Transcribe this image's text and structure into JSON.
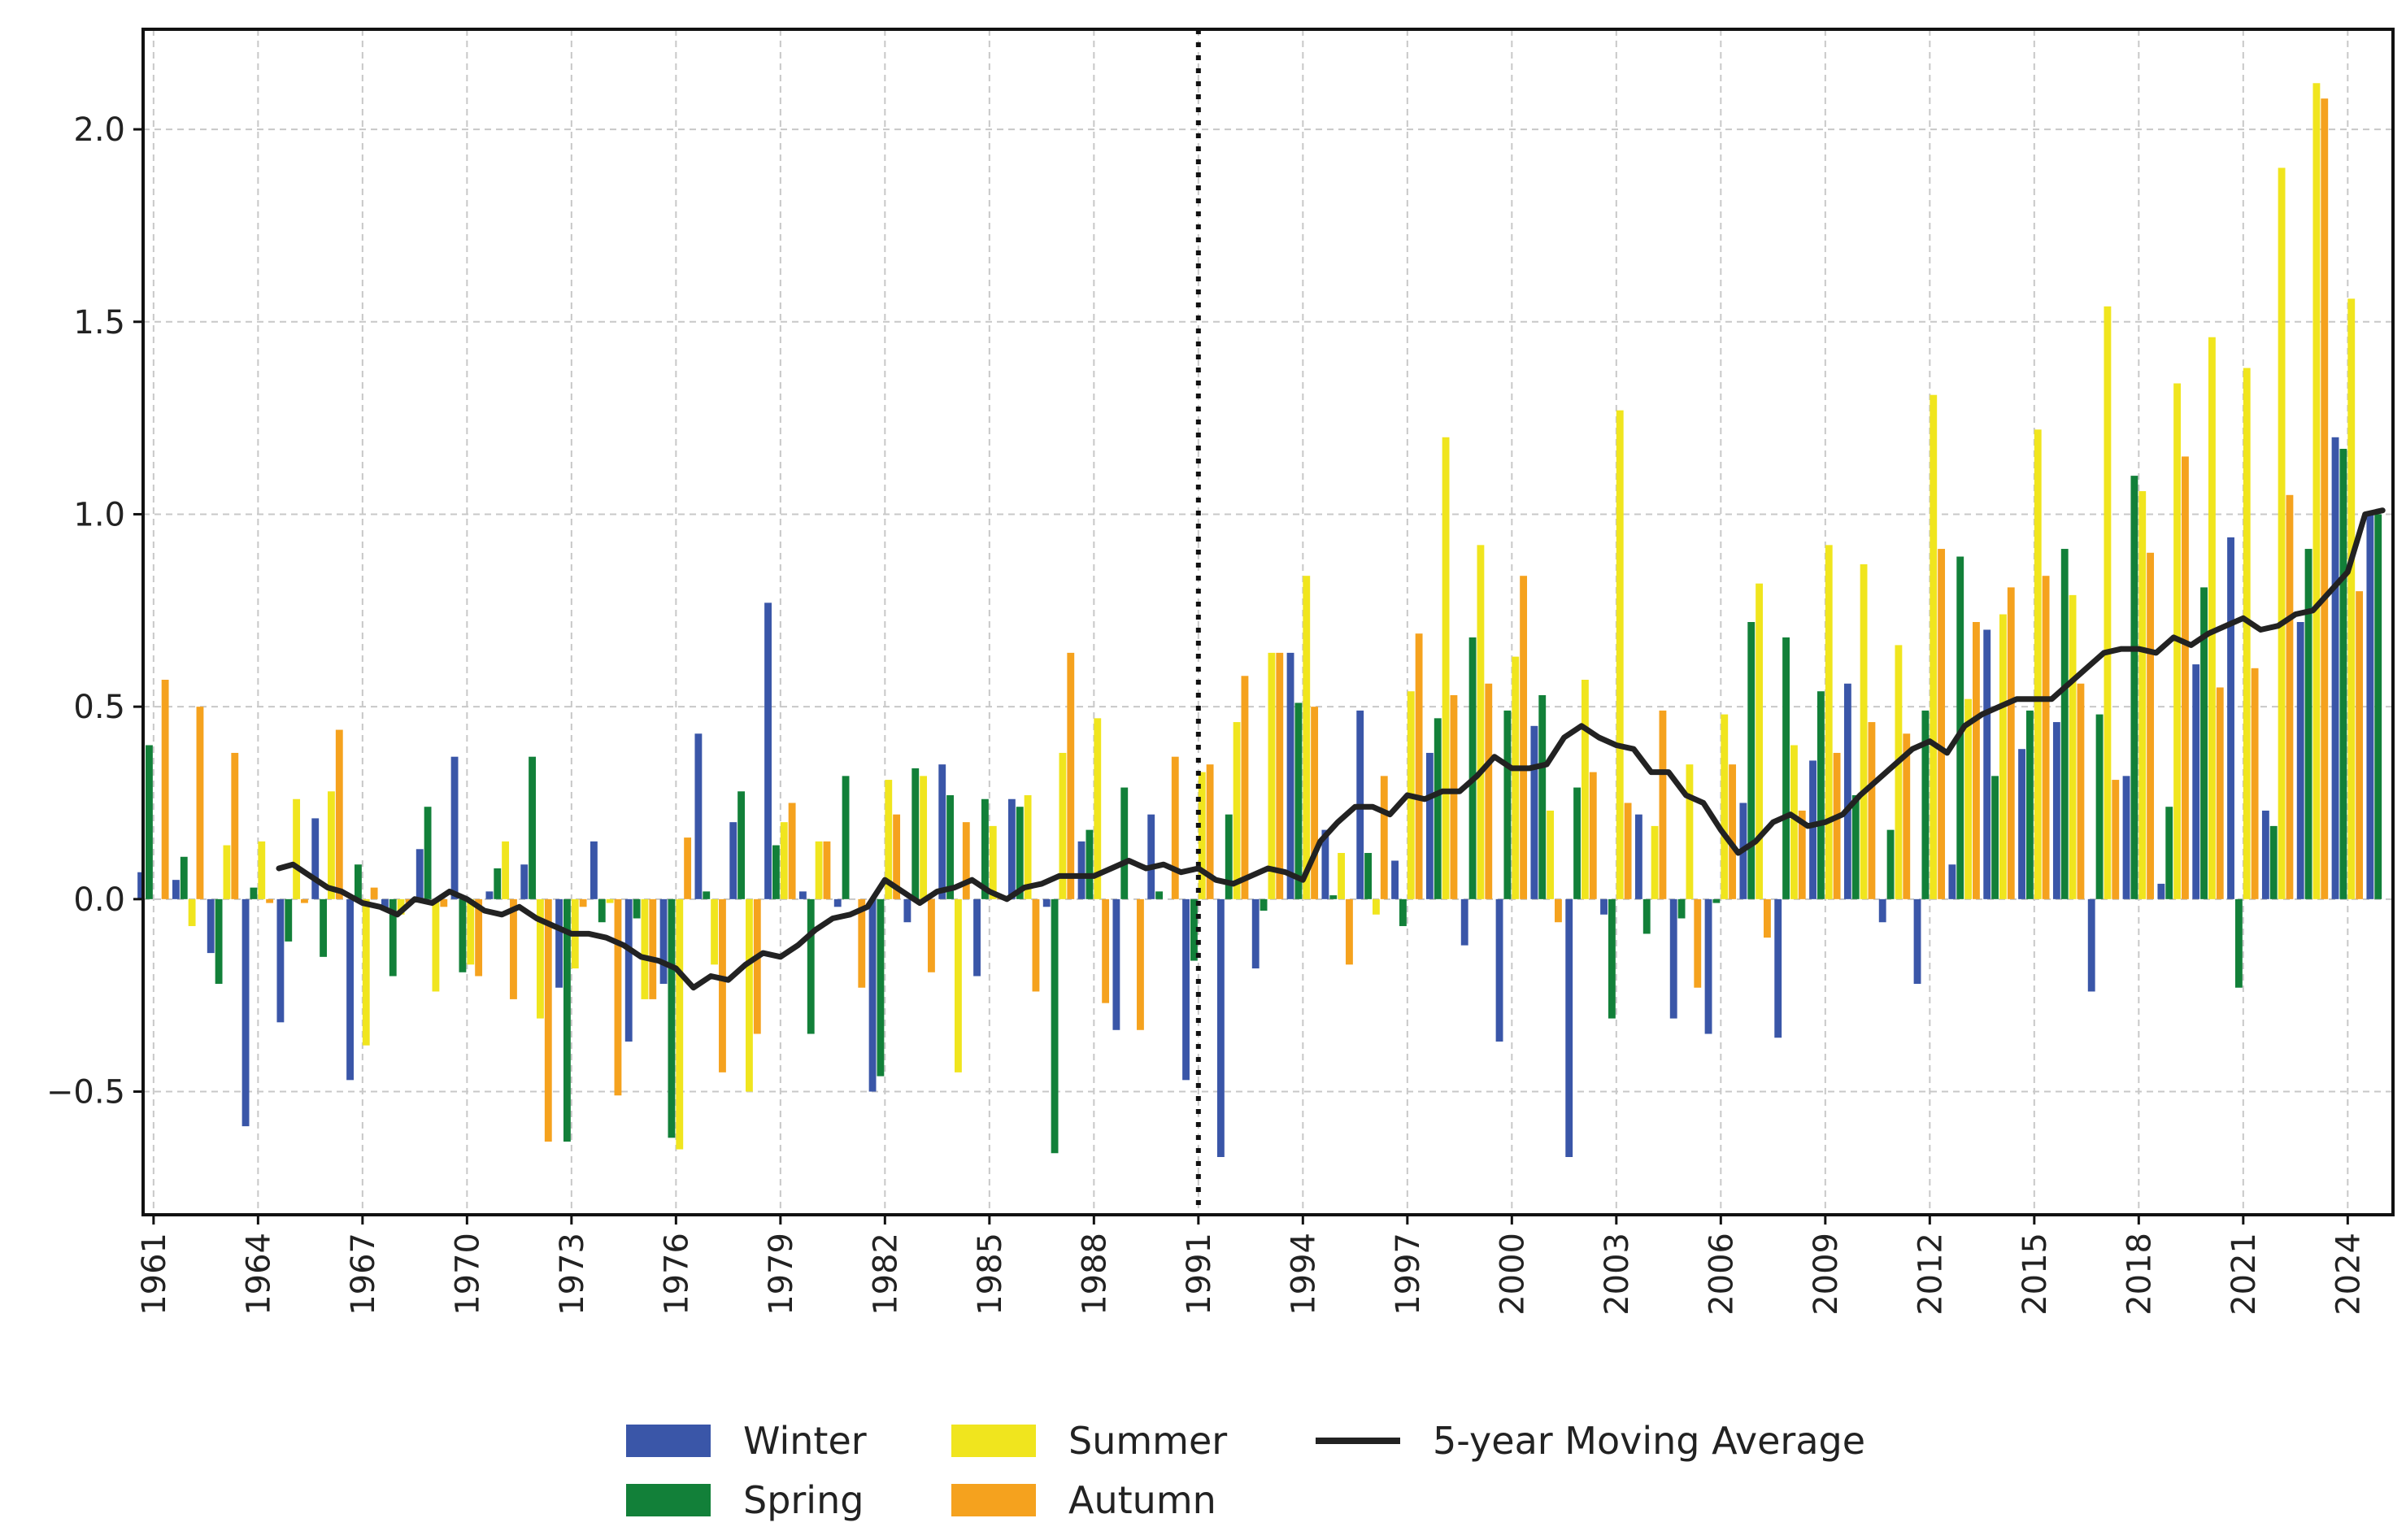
{
  "chart_data": {
    "type": "bar",
    "title": "",
    "xlabel": "",
    "ylabel": "",
    "xlim": [
      1960.7,
      2025.3
    ],
    "ylim": [
      -0.82,
      2.26
    ],
    "x_ticks": [
      1961,
      1964,
      1967,
      1970,
      1973,
      1976,
      1979,
      1982,
      1985,
      1988,
      1991,
      1994,
      1997,
      2000,
      2003,
      2006,
      2009,
      2012,
      2015,
      2018,
      2021,
      2024
    ],
    "y_ticks": [
      -0.5,
      0.0,
      0.5,
      1.0,
      1.5,
      2.0
    ],
    "y_tick_labels": [
      "−0.5",
      "0.0",
      "0.5",
      "1.0",
      "1.5",
      "2.0"
    ],
    "grid": true,
    "legend_position": "bottom-center",
    "reference_line": {
      "x": 1991,
      "style": "dotted"
    },
    "years": [
      1961,
      1962,
      1963,
      1964,
      1965,
      1966,
      1967,
      1968,
      1969,
      1970,
      1971,
      1972,
      1973,
      1974,
      1975,
      1976,
      1977,
      1978,
      1979,
      1980,
      1981,
      1982,
      1983,
      1984,
      1985,
      1986,
      1987,
      1988,
      1989,
      1990,
      1991,
      1992,
      1993,
      1994,
      1995,
      1996,
      1997,
      1998,
      1999,
      2000,
      2001,
      2002,
      2003,
      2004,
      2005,
      2006,
      2007,
      2008,
      2009,
      2010,
      2011,
      2012,
      2013,
      2014,
      2015,
      2016,
      2017,
      2018,
      2019,
      2020,
      2021,
      2022,
      2023,
      2024,
      2025
    ],
    "series": [
      {
        "name": "Winter",
        "color": "#3a56a8",
        "values": [
          0.07,
          0.05,
          -0.14,
          -0.59,
          -0.32,
          0.21,
          -0.47,
          -0.03,
          0.13,
          0.37,
          0.02,
          0.09,
          -0.23,
          0.15,
          -0.37,
          -0.22,
          0.43,
          0.2,
          0.77,
          0.02,
          -0.02,
          -0.5,
          -0.06,
          0.35,
          -0.2,
          0.26,
          -0.02,
          0.15,
          -0.34,
          0.22,
          -0.47,
          -0.67,
          -0.18,
          0.64,
          0.18,
          0.49,
          0.1,
          0.38,
          -0.12,
          -0.37,
          0.45,
          -0.67,
          -0.04,
          0.22,
          -0.31,
          -0.35,
          0.25,
          -0.36,
          0.36,
          0.56,
          -0.06,
          -0.22,
          0.09,
          0.7,
          0.39,
          0.46,
          -0.24,
          0.32,
          0.04,
          0.61,
          0.94,
          0.23,
          0.72,
          1.2,
          1.0
        ]
      },
      {
        "name": "Spring",
        "color": "#128039",
        "values": [
          0.4,
          0.11,
          -0.22,
          0.03,
          -0.11,
          -0.15,
          0.09,
          -0.2,
          0.24,
          -0.19,
          0.08,
          0.37,
          -0.63,
          -0.06,
          -0.05,
          -0.62,
          0.02,
          0.28,
          0.14,
          -0.35,
          0.32,
          -0.46,
          0.34,
          0.27,
          0.26,
          0.24,
          -0.66,
          0.18,
          0.29,
          0.02,
          -0.16,
          0.22,
          -0.03,
          0.51,
          0.01,
          0.12,
          -0.07,
          0.47,
          0.68,
          0.49,
          0.53,
          0.29,
          -0.31,
          -0.09,
          -0.05,
          -0.01,
          0.72,
          0.68,
          0.54,
          0.27,
          0.18,
          0.49,
          0.89,
          0.32,
          0.49,
          0.91,
          0.48,
          1.1,
          0.24,
          0.81,
          -0.23,
          0.19,
          0.91,
          1.17,
          1.0
        ]
      },
      {
        "name": "Summer",
        "color": "#f0e51e",
        "values": [
          0.0,
          -0.07,
          0.14,
          0.15,
          0.26,
          0.28,
          -0.38,
          -0.04,
          -0.24,
          -0.17,
          0.15,
          -0.31,
          -0.18,
          -0.01,
          -0.26,
          -0.65,
          -0.17,
          -0.5,
          0.2,
          0.15,
          0.0,
          0.31,
          0.32,
          -0.45,
          0.19,
          0.27,
          0.38,
          0.47,
          0.0,
          0.0,
          0.33,
          0.46,
          0.64,
          0.84,
          0.12,
          -0.04,
          0.54,
          1.2,
          0.92,
          0.63,
          0.23,
          0.57,
          1.27,
          0.19,
          0.35,
          0.48,
          0.82,
          0.4,
          0.92,
          0.87,
          0.66,
          1.31,
          0.52,
          0.74,
          1.22,
          0.79,
          1.54,
          1.06,
          1.34,
          1.46,
          1.38,
          1.9,
          2.12,
          1.56,
          0.0
        ]
      },
      {
        "name": "Autumn",
        "color": "#f5a21e",
        "values": [
          0.57,
          0.5,
          0.38,
          -0.01,
          -0.01,
          0.44,
          0.03,
          -0.01,
          -0.02,
          -0.2,
          -0.26,
          -0.63,
          -0.02,
          -0.51,
          -0.26,
          0.16,
          -0.45,
          -0.35,
          0.25,
          0.15,
          -0.23,
          0.22,
          -0.19,
          0.2,
          0.01,
          -0.24,
          0.64,
          -0.27,
          -0.34,
          0.37,
          0.35,
          0.58,
          0.64,
          0.5,
          -0.17,
          0.32,
          0.69,
          0.53,
          0.56,
          0.84,
          -0.06,
          0.33,
          0.25,
          0.49,
          -0.23,
          0.35,
          -0.1,
          0.23,
          0.38,
          0.46,
          0.43,
          0.91,
          0.72,
          0.81,
          0.84,
          0.56,
          0.31,
          0.9,
          1.15,
          0.55,
          0.6,
          1.05,
          2.08,
          0.8,
          0.0
        ]
      }
    ],
    "moving_average": {
      "name": "5-year Moving Average",
      "color": "#222222",
      "x": [
        1964.6,
        1965,
        1965.5,
        1966,
        1966.4,
        1967,
        1967.5,
        1968,
        1968.5,
        1969,
        1969.5,
        1970,
        1970.5,
        1971,
        1971.5,
        1972,
        1972.5,
        1973,
        1973.5,
        1974,
        1974.5,
        1975,
        1975.5,
        1976,
        1976.5,
        1977,
        1977.5,
        1978,
        1978.5,
        1979,
        1979.5,
        1980,
        1980.5,
        1981,
        1981.5,
        1982,
        1982.5,
        1983,
        1983.5,
        1984,
        1984.5,
        1985,
        1985.5,
        1986,
        1986.5,
        1987,
        1987.5,
        1988,
        1988.5,
        1989,
        1989.5,
        1990,
        1990.5,
        1991,
        1991.5,
        1992,
        1992.5,
        1993,
        1993.5,
        1994,
        1994.5,
        1995,
        1995.5,
        1996,
        1996.5,
        1997,
        1997.5,
        1998,
        1998.5,
        1999,
        1999.5,
        2000,
        2000.5,
        2001,
        2001.5,
        2002,
        2002.5,
        2003,
        2003.5,
        2004,
        2004.5,
        2005,
        2005.5,
        2006,
        2006.5,
        2007,
        2007.5,
        2008,
        2008.5,
        2009,
        2009.5,
        2010,
        2010.5,
        2011,
        2011.5,
        2012,
        2012.5,
        2013,
        2013.5,
        2014,
        2014.5,
        2015,
        2015.5,
        2016,
        2016.5,
        2017,
        2017.5,
        2018,
        2018.5,
        2019,
        2019.5,
        2020,
        2020.5,
        2021,
        2021.5,
        2022,
        2022.5,
        2023,
        2023.5,
        2024,
        2024.5,
        2025
      ],
      "y": [
        0.08,
        0.09,
        0.06,
        0.03,
        0.02,
        -0.01,
        -0.02,
        -0.04,
        0.0,
        -0.01,
        0.02,
        0.0,
        -0.03,
        -0.04,
        -0.02,
        -0.05,
        -0.07,
        -0.09,
        -0.09,
        -0.1,
        -0.12,
        -0.15,
        -0.16,
        -0.18,
        -0.23,
        -0.2,
        -0.21,
        -0.17,
        -0.14,
        -0.15,
        -0.12,
        -0.08,
        -0.05,
        -0.04,
        -0.02,
        0.05,
        0.02,
        -0.01,
        0.02,
        0.03,
        0.05,
        0.02,
        0.0,
        0.03,
        0.04,
        0.06,
        0.06,
        0.06,
        0.08,
        0.1,
        0.08,
        0.09,
        0.07,
        0.08,
        0.05,
        0.04,
        0.06,
        0.08,
        0.07,
        0.05,
        0.15,
        0.2,
        0.24,
        0.24,
        0.22,
        0.27,
        0.26,
        0.28,
        0.28,
        0.32,
        0.37,
        0.34,
        0.34,
        0.35,
        0.42,
        0.45,
        0.42,
        0.4,
        0.39,
        0.33,
        0.33,
        0.27,
        0.25,
        0.18,
        0.12,
        0.15,
        0.2,
        0.22,
        0.19,
        0.2,
        0.22,
        0.27,
        0.31,
        0.35,
        0.39,
        0.41,
        0.38,
        0.45,
        0.48,
        0.5,
        0.52,
        0.52,
        0.52,
        0.56,
        0.6,
        0.64,
        0.65,
        0.65,
        0.64,
        0.68,
        0.66,
        0.69,
        0.71,
        0.73,
        0.7,
        0.71,
        0.74,
        0.75,
        0.8,
        0.85,
        1.0,
        1.01
      ]
    }
  }
}
